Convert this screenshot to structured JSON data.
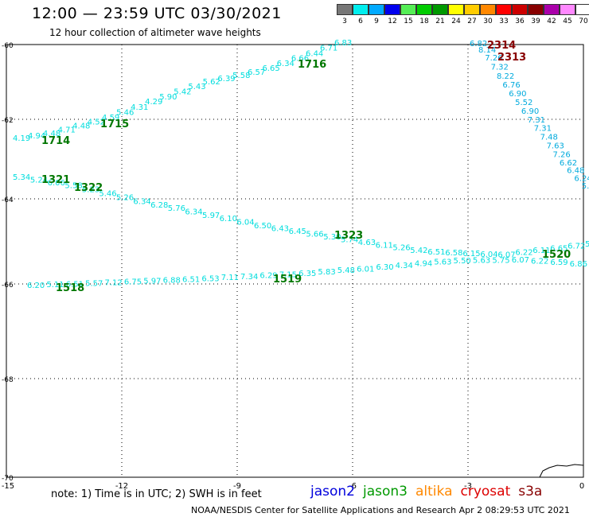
{
  "header": {
    "title": "12:00 — 23:59 UTC 03/30/2021",
    "subtitle": "12 hour collection of altimeter wave heights"
  },
  "color_scale": {
    "labels": [
      "3",
      "6",
      "9",
      "12",
      "15",
      "18",
      "21",
      "24",
      "27",
      "30",
      "33",
      "36",
      "39",
      "42",
      "45",
      "70",
      "(ft)"
    ],
    "colors": [
      "#777777",
      "#00eeee",
      "#00aaff",
      "#0000ee",
      "#55ee55",
      "#00cc00",
      "#009900",
      "#ffff00",
      "#ffcc00",
      "#ff8800",
      "#ff0000",
      "#cc0000",
      "#880000",
      "#aa00aa",
      "#ff88ff",
      "#ffffff",
      "#000000"
    ]
  },
  "axes": {
    "x_ticks": [
      "-15",
      "-12",
      "-9",
      "-6",
      "-3",
      "0"
    ],
    "y_ticks": [
      "-60",
      "-62",
      "-64",
      "-66",
      "-68",
      "-70"
    ]
  },
  "tracks": [
    {
      "values": [
        "4.19",
        "4.94",
        "4.48",
        "4.71",
        "4.48",
        "4.52",
        "4.59",
        "5.46",
        "4.31",
        "4.29",
        "5.90",
        "5.42",
        "5.43",
        "5.62",
        "6.39",
        "5.58",
        "6.57",
        "6.65",
        "6.34",
        "6.66",
        "6.44",
        "6.71",
        "6.83"
      ],
      "color": "#00dddd"
    },
    {
      "values": [
        "5.34",
        "5.24",
        "6.06",
        "5.58",
        "5.23",
        "5.46",
        "5.26",
        "6.34",
        "6.28",
        "5.76",
        "6.34",
        "5.97",
        "6.10",
        "6.04",
        "6.50",
        "6.43",
        "6.45",
        "5.66",
        "5.30",
        "5.74",
        "4.63",
        "6.11",
        "5.26",
        "5.42",
        "6.51",
        "6.58",
        "6.15",
        "6.04",
        "6.07",
        "6.22",
        "6.11",
        "6.65",
        "6.72",
        "5.69"
      ],
      "color": "#00dddd"
    },
    {
      "values": [
        "6.20",
        "5.11",
        "6.51",
        "5.57",
        "7.12",
        "6.75",
        "5.97",
        "6.88",
        "6.51",
        "6.53",
        "7.11",
        "7.34",
        "6.29",
        "7.15",
        "6.35",
        "5.83",
        "5.48",
        "6.01",
        "6.30",
        "4.34",
        "4.94",
        "5.63",
        "5.50",
        "5.63",
        "5.75",
        "6.07",
        "6.22",
        "6.59",
        "6.86",
        "6.78"
      ],
      "color": "#00dddd"
    },
    {
      "values": [
        "6.82",
        "8.14",
        "7.26",
        "7.32",
        "8.22",
        "6.76",
        "6.90",
        "5.52",
        "6.90",
        "7.31",
        "7.31",
        "7.48",
        "7.63",
        "7.26",
        "6.62",
        "6.48",
        "6.24",
        "5.44",
        "4.5"
      ],
      "color": "#00aadd"
    }
  ],
  "time_labels": [
    {
      "text": "1714",
      "color": "#007700"
    },
    {
      "text": "1715",
      "color": "#007700"
    },
    {
      "text": "1716",
      "color": "#007700"
    },
    {
      "text": "1321",
      "color": "#007700"
    },
    {
      "text": "1322",
      "color": "#007700"
    },
    {
      "text": "1323",
      "color": "#007700"
    },
    {
      "text": "1518",
      "color": "#007700"
    },
    {
      "text": "1519",
      "color": "#007700"
    },
    {
      "text": "1520",
      "color": "#007700"
    },
    {
      "text": "2314",
      "color": "#880000"
    },
    {
      "text": "2313",
      "color": "#880000"
    }
  ],
  "note": "note: 1) Time is in UTC; 2) SWH is in feet",
  "satellites": [
    {
      "name": "jason2",
      "color": "#0000dd"
    },
    {
      "name": "jason3",
      "color": "#009900"
    },
    {
      "name": "altika",
      "color": "#ff8800"
    },
    {
      "name": "cryosat",
      "color": "#dd0000"
    },
    {
      "name": "s3a",
      "color": "#880000"
    }
  ],
  "footer": "NOAA/NESDIS Center for Satellite Applications and Research    Apr  2 08:29:53 UTC 2021"
}
